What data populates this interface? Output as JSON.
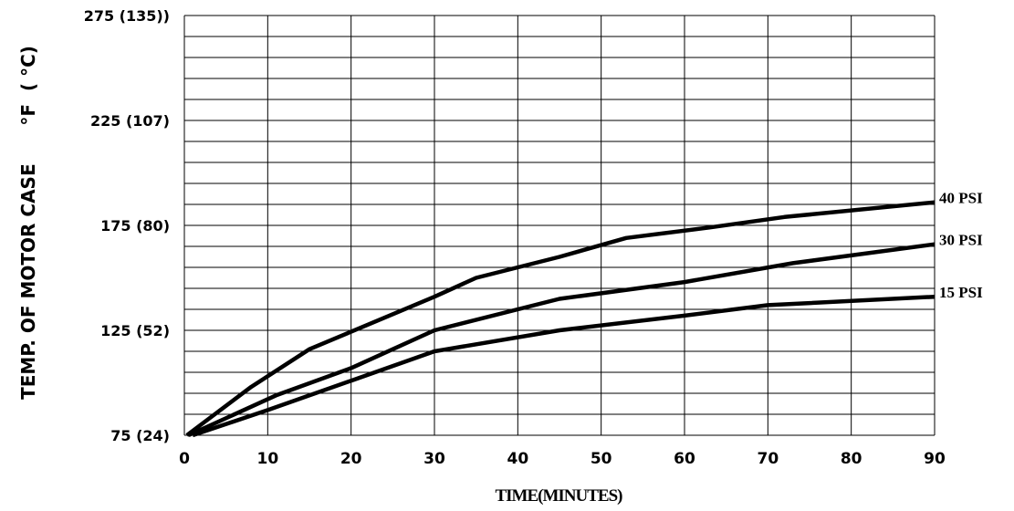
{
  "chart_data": {
    "type": "line",
    "title": "",
    "xlabel": "TIME(MINUTES)",
    "ylabel": "TEMP. OF MOTOR CASE      °F  ( °C)",
    "x_ticks": [
      0,
      10,
      20,
      30,
      40,
      50,
      60,
      70,
      80,
      90
    ],
    "x_tick_labels": [
      "0",
      "10",
      "20",
      "30",
      "40",
      "50",
      "60",
      "70",
      "80",
      "90"
    ],
    "y_ticks": [
      75,
      125,
      175,
      225,
      275
    ],
    "y_tick_labels": [
      "75  (24)",
      "125  (52)",
      "175  (80)",
      "225 (107)",
      "275 (135))"
    ],
    "xlim": [
      0,
      90
    ],
    "ylim": [
      75,
      275
    ],
    "grid": true,
    "series": [
      {
        "name": "40 PSI",
        "x": [
          0.3,
          8,
          15,
          30,
          35,
          45,
          53,
          63,
          72,
          90
        ],
        "y": [
          75,
          98,
          116,
          141,
          150,
          160,
          169,
          174,
          179,
          186
        ]
      },
      {
        "name": "30 PSI",
        "x": [
          0.5,
          11,
          20,
          30,
          45,
          60,
          73,
          90
        ],
        "y": [
          75,
          94,
          107,
          125,
          140,
          148,
          157,
          166
        ]
      },
      {
        "name": "15 PSI",
        "x": [
          1,
          10,
          20,
          30,
          45,
          60,
          70,
          90
        ],
        "y": [
          75,
          87,
          101,
          115,
          125,
          132,
          137,
          141
        ]
      }
    ]
  }
}
